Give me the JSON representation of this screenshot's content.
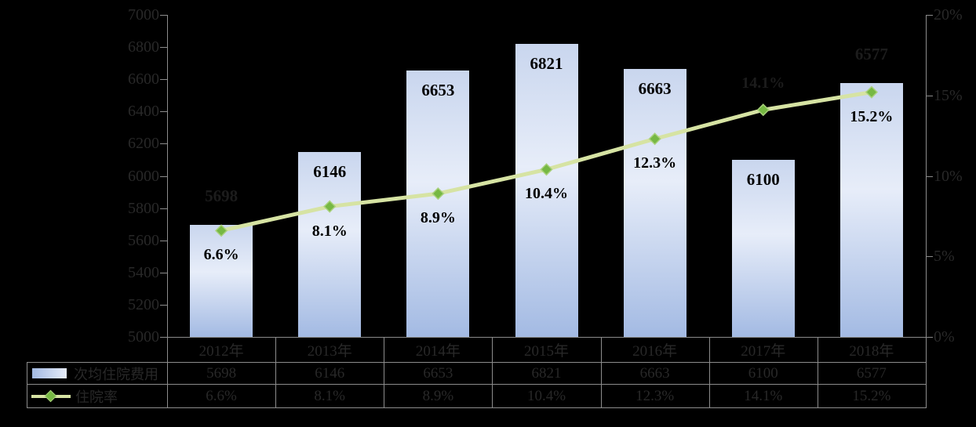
{
  "chart_data": {
    "type": "combo-bar-line",
    "title": "",
    "categories": [
      "2012年",
      "2013年",
      "2014年",
      "2015年",
      "2016年",
      "2017年",
      "2018年"
    ],
    "series": [
      {
        "name": "次均住院费用",
        "type": "bar",
        "axis": "left",
        "values": [
          5698,
          6146,
          6653,
          6821,
          6663,
          6100,
          6577
        ],
        "labels": [
          "5698",
          "6146",
          "6653",
          "6821",
          "6663",
          "6100",
          "6577"
        ],
        "label_placement": [
          "above",
          "inside",
          "inside",
          "inside",
          "inside",
          "inside",
          "above"
        ]
      },
      {
        "name": "住院率",
        "type": "line",
        "axis": "right",
        "values": [
          6.6,
          8.1,
          8.9,
          10.4,
          12.3,
          14.1,
          15.2
        ],
        "labels": [
          "6.6%",
          "8.1%",
          "8.9%",
          "10.4%",
          "12.3%",
          "14.1%",
          "15.2%"
        ],
        "label_placement": [
          "below",
          "below",
          "below",
          "below",
          "below",
          "above",
          "below"
        ]
      }
    ],
    "left_axis": {
      "min": 5000,
      "max": 7000,
      "step": 200,
      "tick_labels": [
        "5000",
        "5200",
        "5400",
        "5600",
        "5800",
        "6000",
        "6200",
        "6400",
        "6600",
        "6800",
        "7000"
      ]
    },
    "right_axis": {
      "min": 0,
      "max": 20,
      "step": 5,
      "tick_labels": [
        "0%",
        "5%",
        "10%",
        "15%",
        "20%"
      ]
    },
    "grid": false,
    "legend_position": "bottom-left-of-data-table",
    "data_table_shown": true,
    "colors": {
      "background": "#000000",
      "bar_gradient_top": "#c9d6ee",
      "bar_gradient_mid": "#e7edf9",
      "bar_gradient_bottom": "#a3bae3",
      "line": "#d6e3a3",
      "marker_fill": "#76b843",
      "marker_edge": "#a9d17c",
      "axis_line": "#8c8c8c",
      "text_on_light": "#000000",
      "text_on_dark": "#282828",
      "dim_data_label": "#1c1c1c"
    }
  }
}
